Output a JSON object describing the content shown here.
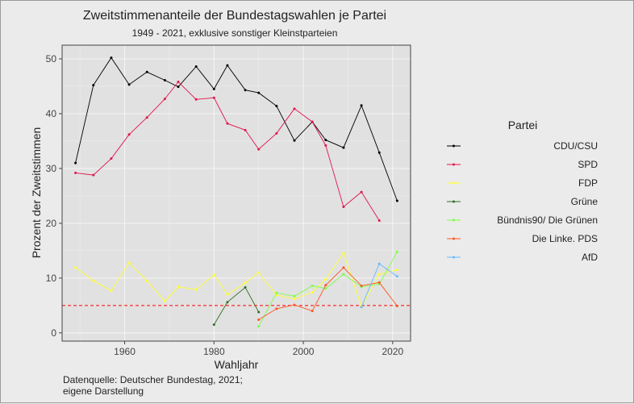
{
  "chart_data": {
    "type": "line",
    "title": "Zweitstimmenanteile der Bundestagswahlen je Partei",
    "subtitle": "1949 - 2021, exklusive sonstiger Kleinstparteien",
    "xlabel": "Wahljahr",
    "ylabel": "Prozent der Zweitstimmen",
    "xlim": [
      1946,
      2024
    ],
    "ylim": [
      -1.5,
      52.5
    ],
    "x_ticks": [
      1960,
      1980,
      2000,
      2020
    ],
    "y_ticks": [
      0,
      10,
      20,
      30,
      40,
      50
    ],
    "grid": true,
    "legend_title": "Partei",
    "legend_position": "right",
    "threshold": {
      "value": 5,
      "color": "#ff0000",
      "style": "dashed"
    },
    "series": [
      {
        "name": "CDU/CSU",
        "color": "#000000",
        "x": [
          1949,
          1953,
          1957,
          1961,
          1965,
          1969,
          1972,
          1976,
          1980,
          1983,
          1987,
          1990,
          1994,
          1998,
          2002,
          2005,
          2009,
          2013,
          2017,
          2021
        ],
        "y": [
          31.0,
          45.2,
          50.2,
          45.3,
          47.6,
          46.1,
          44.9,
          48.6,
          44.5,
          48.8,
          44.3,
          43.8,
          41.4,
          35.1,
          38.5,
          35.2,
          33.8,
          41.5,
          32.9,
          24.1
        ]
      },
      {
        "name": "SPD",
        "color": "#e0144b",
        "x": [
          1949,
          1953,
          1957,
          1961,
          1965,
          1969,
          1972,
          1976,
          1980,
          1983,
          1987,
          1990,
          1994,
          1998,
          2002,
          2005,
          2009,
          2013,
          2017
        ],
        "y": [
          29.2,
          28.8,
          31.8,
          36.2,
          39.3,
          42.7,
          45.8,
          42.6,
          42.9,
          38.2,
          37.0,
          33.5,
          36.4,
          40.9,
          38.5,
          34.2,
          23.0,
          25.7,
          20.5
        ]
      },
      {
        "name": "FDP",
        "color": "#ffff33",
        "x": [
          1949,
          1953,
          1957,
          1961,
          1965,
          1969,
          1972,
          1976,
          1980,
          1983,
          1987,
          1990,
          1994,
          1998,
          2002,
          2005,
          2009,
          2013,
          2017,
          2021
        ],
        "y": [
          11.9,
          9.5,
          7.7,
          12.8,
          9.5,
          5.8,
          8.4,
          7.9,
          10.6,
          7.0,
          9.1,
          11.0,
          6.9,
          6.2,
          7.4,
          9.8,
          14.6,
          4.8,
          10.7,
          11.5
        ]
      },
      {
        "name": "Grüne",
        "color": "#2f6f1f",
        "x": [
          1980,
          1983,
          1987,
          1990
        ],
        "y": [
          1.5,
          5.6,
          8.3,
          3.8
        ]
      },
      {
        "name": "Bündnis90/ Die Grünen",
        "color": "#7cff44",
        "x": [
          1990,
          1994,
          1998,
          2002,
          2005,
          2009,
          2013,
          2017,
          2021
        ],
        "y": [
          1.2,
          7.3,
          6.7,
          8.6,
          8.1,
          10.7,
          8.4,
          8.9,
          14.8
        ]
      },
      {
        "name": "Die Linke. PDS",
        "color": "#ff5522",
        "x": [
          1990,
          1994,
          1998,
          2002,
          2005,
          2009,
          2013,
          2017,
          2021
        ],
        "y": [
          2.4,
          4.4,
          5.1,
          4.0,
          8.7,
          11.9,
          8.6,
          9.2,
          4.9
        ]
      },
      {
        "name": "AfD",
        "color": "#66bbff",
        "x": [
          2013,
          2017,
          2021
        ],
        "y": [
          4.7,
          12.6,
          10.3
        ]
      }
    ]
  },
  "caption": [
    "Datenquelle: Deutscher Bundestag, 2021;",
    "eigene Darstellung"
  ]
}
